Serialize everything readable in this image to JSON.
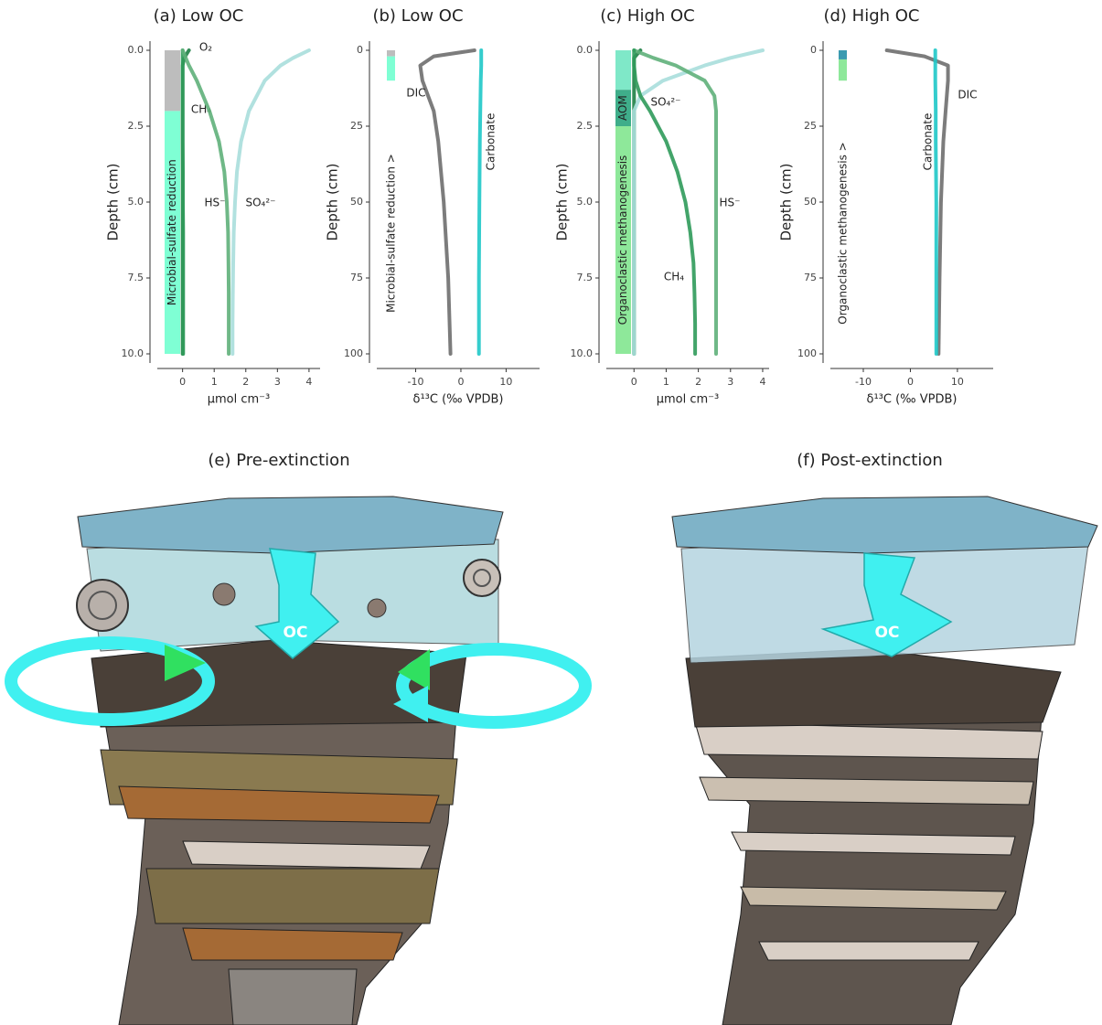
{
  "chart_data": [
    {
      "type": "line",
      "title": "(a) Low OC",
      "xlabel": "μmol cm⁻³",
      "ylabel": "Depth (cm)",
      "xlim": [
        -0.8,
        4.35
      ],
      "xticks": [
        0,
        1,
        2,
        3,
        4
      ],
      "ylim": [
        0,
        10
      ],
      "y_inverted": true,
      "yticks": [
        {
          "value": 0,
          "label": "0.0"
        },
        {
          "value": 2.5,
          "label": "2.5"
        },
        {
          "value": 5,
          "label": "5.0"
        },
        {
          "value": 7.5,
          "label": "7.5"
        },
        {
          "value": 10,
          "label": "10.0"
        }
      ],
      "depth": [
        0,
        0.25,
        0.5,
        1,
        2,
        3,
        4,
        5,
        6,
        7,
        8,
        9,
        10
      ],
      "series": [
        {
          "name": "O₂",
          "color": "#1e7f45",
          "values": [
            0.2,
            0.05,
            0,
            0,
            0,
            0,
            0,
            0,
            0,
            0,
            0,
            0,
            0
          ]
        },
        {
          "name": "CH₄",
          "color": "#2f9a5a",
          "values": [
            0,
            0,
            0,
            0,
            0,
            0,
            0.01,
            0.01,
            0.02,
            0.02,
            0.02,
            0.02,
            0.02
          ]
        },
        {
          "name": "HS⁻",
          "color": "#5fb07a",
          "values": [
            0,
            0.1,
            0.2,
            0.45,
            0.85,
            1.15,
            1.32,
            1.4,
            1.44,
            1.45,
            1.46,
            1.46,
            1.46
          ]
        },
        {
          "name": "SO₄²⁻",
          "color": "#a8dedb",
          "values": [
            4,
            3.5,
            3.1,
            2.6,
            2.1,
            1.85,
            1.72,
            1.66,
            1.62,
            1.6,
            1.59,
            1.58,
            1.58
          ]
        }
      ],
      "zones": [
        {
          "from": 0,
          "to": 2,
          "color": "#bdbdbd"
        },
        {
          "name": "Microbial-sulfate reduction",
          "from": 2,
          "to": 10,
          "color": "#7fffd4"
        }
      ]
    },
    {
      "type": "line",
      "title": "(b) Low OC",
      "xlabel": "δ¹³C (‰ VPDB)",
      "ylabel": "Depth (cm)",
      "xlim": [
        -18.6,
        17.4
      ],
      "xticks": [
        -10,
        0,
        10
      ],
      "ylim": [
        0,
        100
      ],
      "y_inverted": true,
      "yticks": [
        0,
        25,
        50,
        75,
        100
      ],
      "depth": [
        0,
        2,
        5,
        10,
        20,
        30,
        50,
        75,
        100
      ],
      "series": [
        {
          "name": "DIC",
          "color": "#6e6e6e",
          "values": [
            3,
            -6,
            -9,
            -8.5,
            -6,
            -5,
            -3.8,
            -2.8,
            -2.3
          ]
        },
        {
          "name": "Carbonate",
          "color": "#1fc8c8",
          "values": [
            4.5,
            4.5,
            4.5,
            4.4,
            4.3,
            4.2,
            4.1,
            4,
            4
          ]
        }
      ],
      "zones": [
        {
          "from": 0,
          "to": 2,
          "color": "#bdbdbd"
        },
        {
          "from": 2,
          "to": 10,
          "color": "#7fffd4"
        }
      ],
      "annotation": "Microbial-sulfate reduction >"
    },
    {
      "type": "line",
      "title": "(c) High OC",
      "xlabel": "μmol cm⁻³",
      "ylabel": "Depth (cm)",
      "xlim": [
        -0.86,
        4.2
      ],
      "xticks": [
        0,
        1,
        2,
        3,
        4
      ],
      "ylim": [
        0,
        10
      ],
      "y_inverted": true,
      "yticks": [
        {
          "value": 0,
          "label": "0.0"
        },
        {
          "value": 2.5,
          "label": "2.5"
        },
        {
          "value": 5,
          "label": "5.0"
        },
        {
          "value": 7.5,
          "label": "7.5"
        },
        {
          "value": 10,
          "label": "10.0"
        }
      ],
      "depth": [
        0,
        0.25,
        0.5,
        1,
        1.5,
        2,
        3,
        4,
        5,
        6,
        7,
        8,
        9,
        10
      ],
      "series": [
        {
          "color": "#1e7f45",
          "values": [
            0.2,
            0,
            0,
            0,
            0,
            0,
            0,
            0,
            0,
            0,
            0,
            0,
            0,
            0
          ]
        },
        {
          "name": "SO₄²⁻",
          "color": "#a8dedb",
          "values": [
            4,
            3,
            2.2,
            0.9,
            0.2,
            0,
            0,
            0,
            0,
            0,
            0,
            0,
            0,
            0
          ]
        },
        {
          "name": "HS⁻",
          "color": "#5fb07a",
          "values": [
            0,
            0.6,
            1.3,
            2.2,
            2.5,
            2.55,
            2.55,
            2.55,
            2.55,
            2.55,
            2.55,
            2.55,
            2.55,
            2.55
          ]
        },
        {
          "name": "CH₄",
          "color": "#2f9a5a",
          "values": [
            0,
            0,
            0,
            0.05,
            0.2,
            0.5,
            1,
            1.35,
            1.6,
            1.75,
            1.85,
            1.88,
            1.9,
            1.9
          ]
        }
      ],
      "zones": [
        {
          "from": 0,
          "to": 1.3,
          "color": "#7fe8c8"
        },
        {
          "name": "AOM",
          "from": 1.3,
          "to": 2.5,
          "color": "#3fae8a"
        },
        {
          "name": "Organoclastic methanogenesis",
          "from": 2.5,
          "to": 10,
          "color": "#8ee89a"
        }
      ]
    },
    {
      "type": "line",
      "title": "(d) High OC",
      "xlabel": "δ¹³C (‰ VPDB)",
      "ylabel": "Depth (cm)",
      "xlim": [
        -17,
        17.6
      ],
      "xticks": [
        -10,
        0,
        10
      ],
      "ylim": [
        0,
        100
      ],
      "y_inverted": true,
      "yticks": [
        0,
        25,
        50,
        75,
        100
      ],
      "depth": [
        0,
        2,
        5,
        10,
        20,
        30,
        50,
        75,
        100
      ],
      "series": [
        {
          "name": "DIC",
          "color": "#6e6e6e",
          "values": [
            -5,
            3,
            8,
            8,
            7.5,
            7,
            6.5,
            6.2,
            6
          ]
        },
        {
          "name": "Carbonate",
          "color": "#1fc8c8",
          "values": [
            5.3,
            5.3,
            5.3,
            5.3,
            5.4,
            5.4,
            5.5,
            5.5,
            5.5
          ]
        }
      ],
      "zones": [
        {
          "from": 0,
          "to": 3,
          "color": "#3a9ab0"
        },
        {
          "from": 3,
          "to": 10,
          "color": "#8ee89a"
        }
      ],
      "annotation": "Organoclastic methanogenesis >"
    }
  ],
  "illustrations": [
    {
      "title": "(e) Pre-extinction",
      "label": "OC"
    },
    {
      "title": "(f) Post-extinction",
      "label": "OC"
    }
  ]
}
